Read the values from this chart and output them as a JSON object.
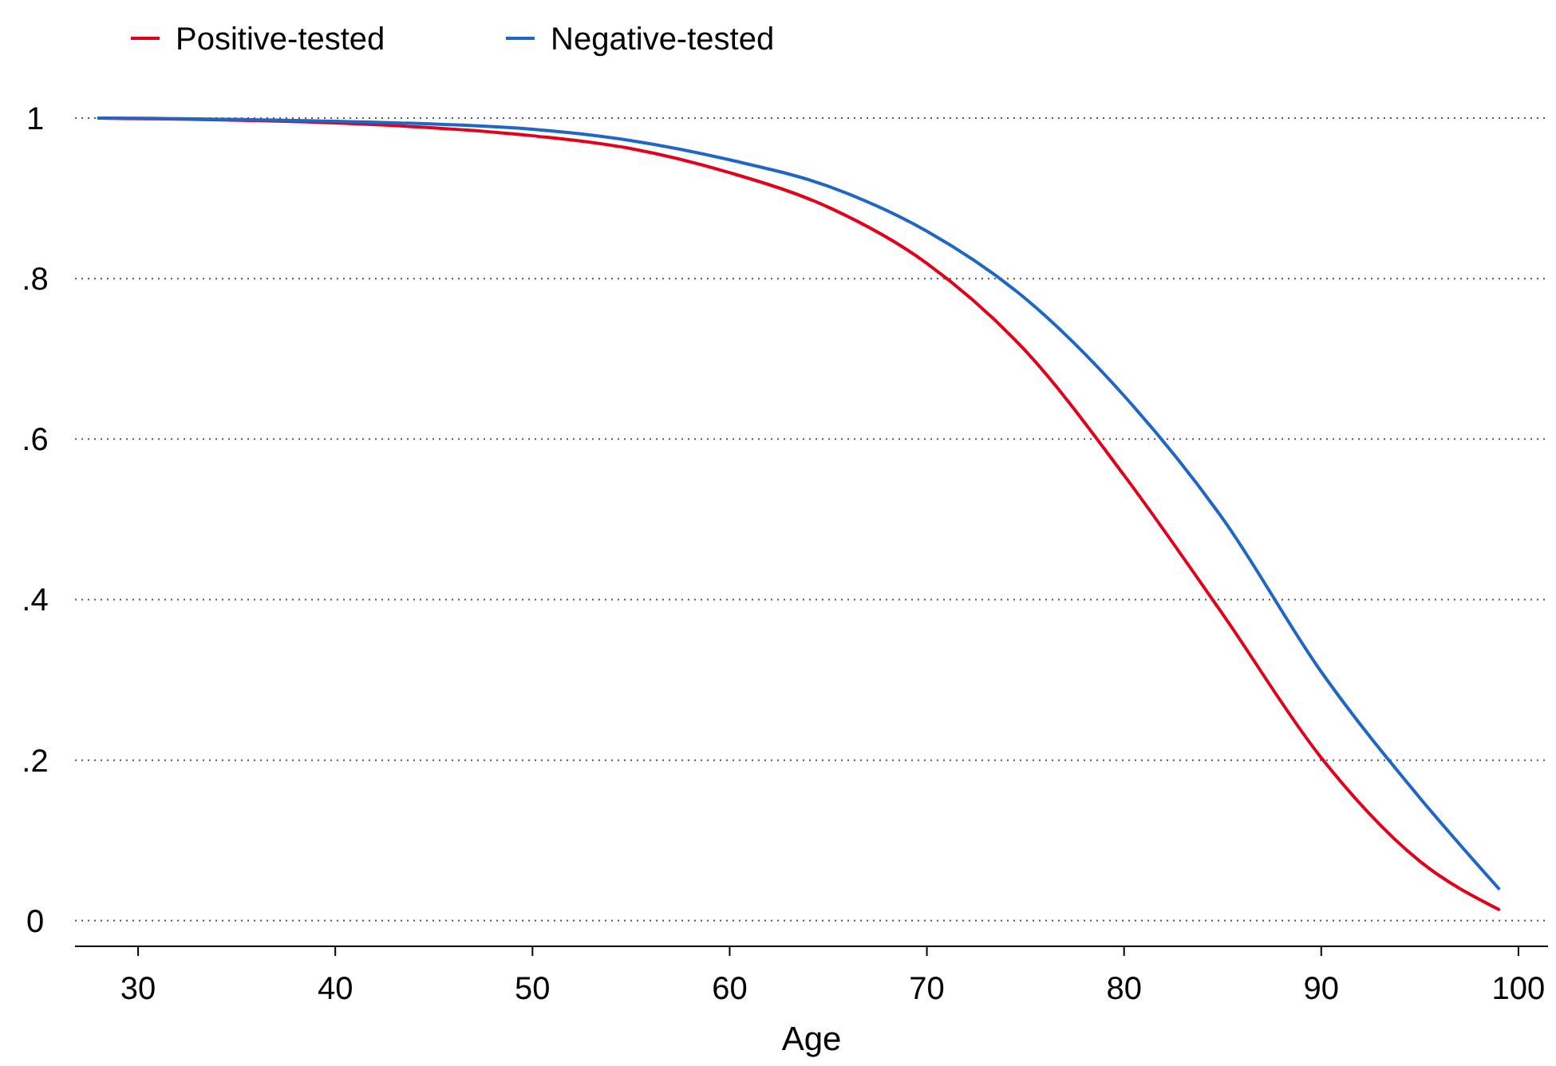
{
  "chart_data": {
    "type": "line",
    "xlabel": "Age",
    "x": [
      28,
      40,
      50,
      55,
      60,
      65,
      70,
      75,
      80,
      85,
      90,
      95,
      99
    ],
    "series": [
      {
        "name": "Positive-tested",
        "color": "#e3001b",
        "values": [
          1.0,
          0.994,
          0.978,
          0.962,
          0.932,
          0.889,
          0.819,
          0.71,
          0.555,
          0.382,
          0.203,
          0.074,
          0.014
        ]
      },
      {
        "name": "Negative-tested",
        "color": "#1f66c9",
        "values": [
          1.0,
          0.996,
          0.986,
          0.972,
          0.948,
          0.915,
          0.859,
          0.775,
          0.654,
          0.501,
          0.31,
          0.153,
          0.04
        ]
      }
    ],
    "xlim": [
      26.8,
      101.5
    ],
    "xticks": [
      30,
      40,
      50,
      60,
      70,
      80,
      90,
      100
    ],
    "ylim": [
      -0.032,
      1
    ],
    "yticks": [
      0,
      {
        "value": 0.2,
        "label": ".2"
      },
      {
        "value": 0.4,
        "label": ".4"
      },
      {
        "value": 0.6,
        "label": ".6"
      },
      {
        "value": 0.8,
        "label": ".8"
      },
      1
    ],
    "grid": "y",
    "legend": "top left",
    "marker": "none",
    "line_style": "solid"
  }
}
